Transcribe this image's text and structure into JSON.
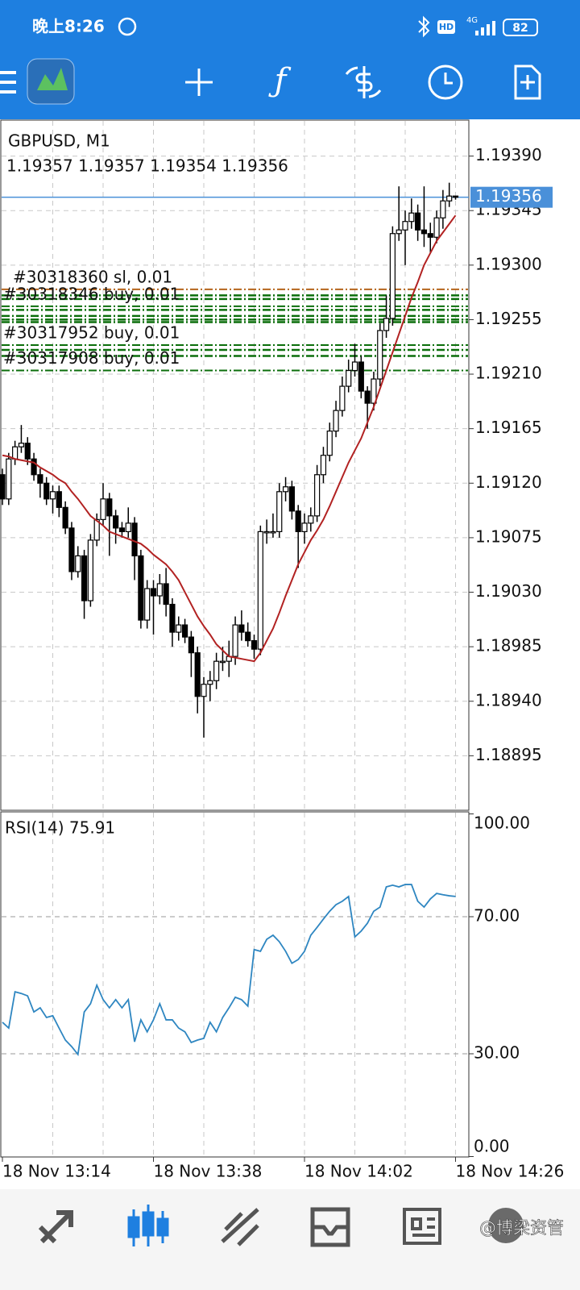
{
  "status_bar": {
    "time": "晚上8:26",
    "network": "4G",
    "hd": "HD",
    "battery": "82"
  },
  "watermark": "@博梁资管",
  "chart_data": [
    {
      "type": "candlestick",
      "title": "GBPUSD, M1",
      "subtitle": "1.19357 1.19357 1.19354 1.19356",
      "categories": [
        "18 Nov 13:14",
        null,
        null,
        null,
        null,
        null,
        null,
        null,
        null,
        null,
        null,
        null,
        null,
        null,
        null,
        null,
        null,
        null,
        null,
        null,
        null,
        null,
        null,
        null,
        "18 Nov 13:38",
        null,
        null,
        null,
        null,
        null,
        null,
        null,
        null,
        null,
        null,
        null,
        null,
        null,
        null,
        null,
        null,
        null,
        null,
        null,
        null,
        null,
        null,
        null,
        "18 Nov 14:02",
        null,
        null,
        null,
        null,
        null,
        null,
        null,
        null,
        null,
        null,
        null,
        null,
        null,
        null,
        null,
        null,
        null,
        null,
        null,
        null,
        null,
        null,
        null,
        "18 Nov 14:26"
      ],
      "open": [
        1.19127,
        1.19107,
        1.1914,
        1.1915,
        1.19153,
        1.1914,
        1.19127,
        1.1912,
        1.19107,
        1.19113,
        1.191,
        1.19083,
        1.19047,
        1.1906,
        1.19023,
        1.19073,
        1.1909,
        1.19107,
        1.19093,
        1.19083,
        1.1908,
        1.19087,
        1.1906,
        1.19007,
        1.19033,
        1.19027,
        1.19037,
        1.1902,
        1.18997,
        1.19003,
        1.18993,
        1.1898,
        1.18944,
        1.18954,
        1.18957,
        1.18973,
        1.18973,
        1.18977,
        1.19003,
        1.18997,
        1.1899,
        1.18983,
        1.1908,
        1.1908,
        1.1908,
        1.19113,
        1.19117,
        1.19097,
        1.1908,
        1.19087,
        1.19093,
        1.19127,
        1.19143,
        1.19163,
        1.1918,
        1.192,
        1.19213,
        1.1922,
        1.19196,
        1.19186,
        1.19206,
        1.19246,
        1.19256,
        1.19326,
        1.19329,
        1.19336,
        1.19343,
        1.19329,
        1.19326,
        1.19323,
        1.19339,
        1.19353,
        1.19357
      ],
      "high": [
        1.19132,
        1.19145,
        1.19155,
        1.19168,
        1.19158,
        1.19145,
        1.19132,
        1.19125,
        1.19118,
        1.19118,
        1.19105,
        1.19088,
        1.19068,
        1.19065,
        1.19078,
        1.19095,
        1.1912,
        1.19112,
        1.19098,
        1.19088,
        1.191,
        1.19092,
        1.19065,
        1.1904,
        1.1904,
        1.19045,
        1.1905,
        1.19025,
        1.1901,
        1.19008,
        1.18998,
        1.18985,
        1.1896,
        1.18965,
        1.1898,
        1.18985,
        1.1899,
        1.1901,
        1.19015,
        1.19005,
        1.18995,
        1.19085,
        1.1909,
        1.19095,
        1.1912,
        1.19125,
        1.19122,
        1.19102,
        1.19095,
        1.191,
        1.19135,
        1.1915,
        1.1917,
        1.19188,
        1.19208,
        1.19222,
        1.19235,
        1.19225,
        1.192,
        1.19212,
        1.19252,
        1.19275,
        1.19332,
        1.19365,
        1.19345,
        1.19355,
        1.1935,
        1.19365,
        1.19335,
        1.19345,
        1.19362,
        1.19368,
        1.19357
      ],
      "low": [
        1.19102,
        1.19102,
        1.19135,
        1.19145,
        1.19135,
        1.19122,
        1.19108,
        1.19102,
        1.19095,
        1.19092,
        1.19078,
        1.1904,
        1.19042,
        1.19008,
        1.19018,
        1.19068,
        1.19085,
        1.1906,
        1.1907,
        1.19075,
        1.19075,
        1.1904,
        1.19,
        1.19,
        1.18995,
        1.1902,
        1.1901,
        1.18985,
        1.1899,
        1.18988,
        1.1896,
        1.1893,
        1.1891,
        1.1894,
        1.1895,
        1.18965,
        1.1896,
        1.1897,
        1.1899,
        1.18985,
        1.18975,
        1.18978,
        1.1907,
        1.19075,
        1.19075,
        1.19105,
        1.1909,
        1.1905,
        1.1907,
        1.1908,
        1.19088,
        1.1912,
        1.19138,
        1.19158,
        1.19175,
        1.19195,
        1.19208,
        1.1919,
        1.19165,
        1.1918,
        1.192,
        1.1924,
        1.1925,
        1.1932,
        1.193,
        1.1933,
        1.1932,
        1.19315,
        1.1931,
        1.19318,
        1.1933,
        1.19348,
        1.19354
      ],
      "close": [
        1.19107,
        1.1914,
        1.1915,
        1.19153,
        1.1914,
        1.19127,
        1.1912,
        1.19107,
        1.19113,
        1.191,
        1.19083,
        1.19047,
        1.1906,
        1.19023,
        1.19073,
        1.1909,
        1.19107,
        1.19093,
        1.19083,
        1.1908,
        1.19087,
        1.1906,
        1.19007,
        1.19033,
        1.19027,
        1.19037,
        1.1902,
        1.18997,
        1.19003,
        1.18993,
        1.1898,
        1.18944,
        1.18954,
        1.18957,
        1.18973,
        1.18973,
        1.18977,
        1.19003,
        1.18997,
        1.1899,
        1.18983,
        1.1908,
        1.1908,
        1.1908,
        1.19113,
        1.19117,
        1.19097,
        1.1908,
        1.19087,
        1.19093,
        1.19127,
        1.19143,
        1.19163,
        1.1918,
        1.192,
        1.19213,
        1.1922,
        1.19196,
        1.19186,
        1.19206,
        1.19246,
        1.19256,
        1.19326,
        1.19329,
        1.19336,
        1.19343,
        1.19329,
        1.19326,
        1.19323,
        1.19339,
        1.19353,
        1.19357,
        1.19356
      ],
      "ma": {
        "color": "#b22222",
        "values": [
          1.19143,
          1.19142,
          1.1914,
          1.19139,
          1.19138,
          1.19137,
          1.19133,
          1.1913,
          1.19127,
          1.19123,
          1.1912,
          1.19113,
          1.19107,
          1.191,
          1.19093,
          1.19089,
          1.19085,
          1.1908,
          1.19078,
          1.19076,
          1.19074,
          1.19072,
          1.1907,
          1.19066,
          1.19061,
          1.19057,
          1.19053,
          1.19047,
          1.1904,
          1.1903,
          1.1902,
          1.1901,
          1.19002,
          1.18995,
          1.18987,
          1.18982,
          1.18977,
          1.18976,
          1.18975,
          1.18974,
          1.18973,
          1.1898,
          1.1899,
          1.19,
          1.19013,
          1.19027,
          1.1904,
          1.19053,
          1.19063,
          1.19073,
          1.19081,
          1.1909,
          1.19101,
          1.19113,
          1.19125,
          1.19137,
          1.19147,
          1.19157,
          1.1917,
          1.19183,
          1.19198,
          1.19213,
          1.19228,
          1.19243,
          1.19258,
          1.19273,
          1.19286,
          1.193,
          1.1931,
          1.1932,
          1.19327,
          1.19334,
          1.19341
        ]
      },
      "up_color": "#ffffff",
      "down_color": "#000000",
      "ylim": [
        1.1885,
        1.19419
      ],
      "yticks": [
        {
          "value": 1.1939,
          "label": "1.19390"
        },
        {
          "value": 1.19345,
          "label": "1.19345"
        },
        {
          "value": 1.193,
          "label": "1.19300"
        },
        {
          "value": 1.19255,
          "label": "1.19255"
        },
        {
          "value": 1.1921,
          "label": "1.19210"
        },
        {
          "value": 1.19165,
          "label": "1.19165"
        },
        {
          "value": 1.1912,
          "label": "1.19120"
        },
        {
          "value": 1.19075,
          "label": "1.19075"
        },
        {
          "value": 1.1903,
          "label": "1.19030"
        },
        {
          "value": 1.18985,
          "label": "1.18985"
        },
        {
          "value": 1.1894,
          "label": "1.18940"
        },
        {
          "value": 1.18895,
          "label": "1.18895"
        }
      ],
      "grid": true,
      "bid": {
        "value": 1.19356,
        "color": "#4a90d9"
      },
      "orders": [
        {
          "label": "#30318360 sl, 0.01",
          "price": 1.1928,
          "color": "#b5651d"
        },
        {
          "label": "#30318346 buy, 0.01",
          "price": 1.19266,
          "color": "#0b6e0b"
        },
        {
          "label": "#30317952 buy, 0.01",
          "price": 1.19234,
          "color": "#0b6e0b"
        },
        {
          "label": "#30317908 buy, 0.01",
          "price": 1.19213,
          "color": "#0b6e0b"
        }
      ],
      "order_lines": {
        "color": "#0b6e0b",
        "prices": [
          1.19275,
          1.19272,
          1.19263,
          1.19258,
          1.19255,
          1.19253,
          1.1923,
          1.19225
        ]
      }
    },
    {
      "type": "line",
      "title": "RSI(14) 75.91",
      "color": "#2e86c1",
      "values": [
        39.2,
        37.5,
        48.1,
        47.6,
        46.9,
        42.2,
        43.4,
        40.6,
        41.1,
        37.5,
        34.0,
        32.1,
        29.8,
        42.2,
        44.6,
        50.0,
        45.8,
        43.4,
        45.8,
        43.4,
        45.8,
        33.5,
        39.9,
        36.4,
        39.9,
        44.6,
        39.9,
        39.9,
        37.5,
        36.4,
        33.3,
        34.0,
        34.5,
        39.2,
        36.4,
        40.6,
        43.4,
        46.5,
        45.8,
        43.9,
        60.4,
        59.9,
        63.4,
        64.6,
        62.7,
        59.9,
        56.4,
        57.5,
        59.9,
        64.6,
        66.9,
        69.3,
        71.6,
        73.5,
        74.5,
        75.9,
        64.1,
        65.8,
        68.1,
        71.6,
        72.8,
        78.7,
        79.2,
        78.7,
        79.4,
        79.4,
        74.5,
        72.8,
        75.2,
        76.8,
        76.4,
        76.1,
        75.91
      ],
      "ylim": [
        0,
        100
      ],
      "yticks": [
        {
          "value": 100,
          "label": "100.00"
        },
        {
          "value": 70,
          "label": "70.00"
        },
        {
          "value": 30,
          "label": "30.00"
        },
        {
          "value": 0,
          "label": "0.00"
        }
      ],
      "levels": [
        70,
        30
      ]
    }
  ]
}
